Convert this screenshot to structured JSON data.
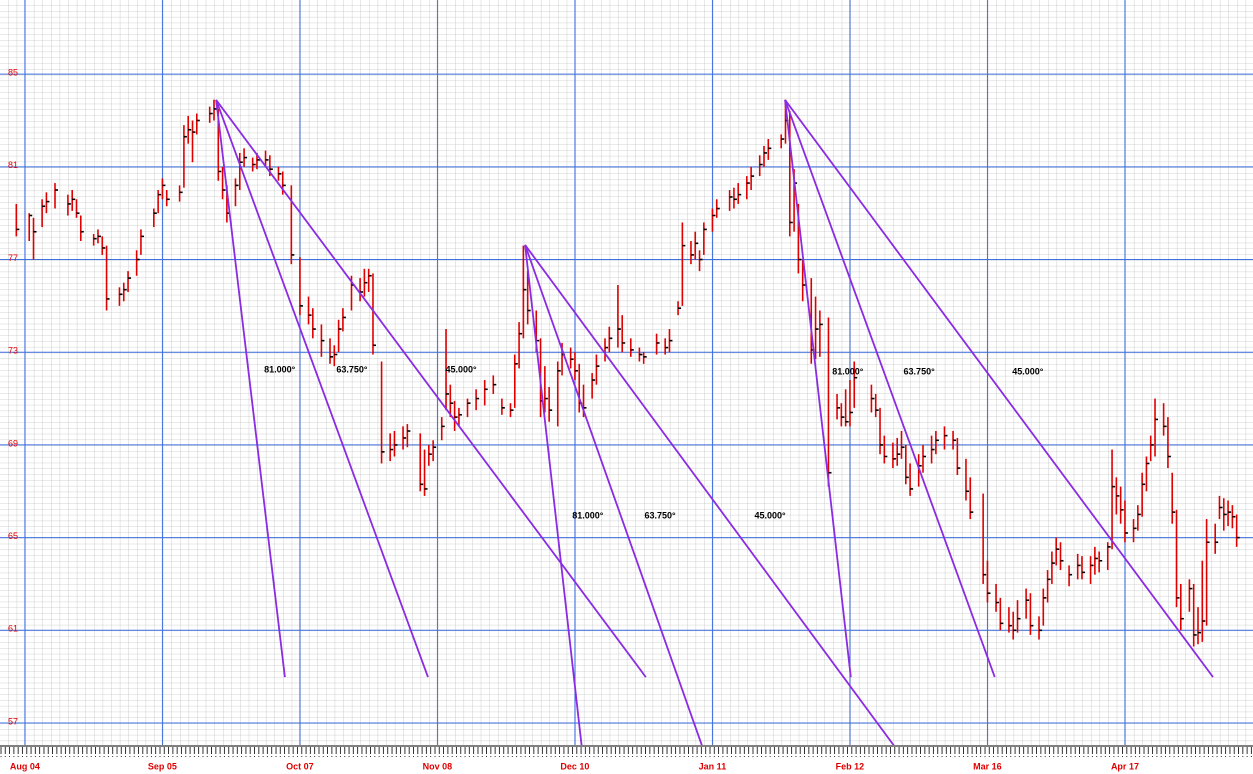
{
  "chart_data": {
    "type": "ohlc",
    "xlim": [
      -5.8,
      285.8
    ],
    "ylim": [
      56.05,
      88.2
    ],
    "yticks": [
      57,
      61,
      65,
      69,
      73,
      77,
      81,
      85
    ],
    "xticks": [
      {
        "value": 0,
        "label": "Aug 04"
      },
      {
        "value": 32,
        "label": "Sep 05"
      },
      {
        "value": 64,
        "label": "Oct 07"
      },
      {
        "value": 96,
        "label": "Nov 08"
      },
      {
        "value": 128,
        "label": "Dec 10"
      },
      {
        "value": 160,
        "label": "Jan 11"
      },
      {
        "value": 192,
        "label": "Feb 12"
      },
      {
        "value": 224,
        "label": "Mar 16"
      },
      {
        "value": 256,
        "label": "Apr 17"
      }
    ],
    "grid": true,
    "color": "#e00000",
    "close_color": "#000000",
    "fan_color": "#8b2be2",
    "x": [
      -2,
      1,
      2,
      4,
      5,
      7,
      10,
      11,
      12,
      13,
      16,
      17,
      18,
      19,
      22,
      23,
      24,
      26,
      27,
      30,
      31,
      32,
      33,
      36,
      37,
      38,
      39,
      40,
      43,
      44,
      45,
      46,
      47,
      49,
      50,
      51,
      53,
      54,
      56,
      57,
      59,
      60,
      62,
      64,
      66,
      67,
      69,
      71,
      72,
      73,
      74,
      76,
      78,
      79,
      80,
      81,
      83,
      85,
      86,
      88,
      89,
      92,
      93,
      94,
      95,
      97,
      98,
      99,
      100,
      101,
      103,
      105,
      107,
      109,
      111,
      113,
      114,
      115,
      116,
      117,
      119,
      120,
      121,
      122,
      124,
      125,
      127,
      128,
      129,
      130,
      132,
      133,
      135,
      136,
      138,
      139,
      141,
      143,
      144,
      147,
      149,
      150,
      152,
      153,
      155,
      156,
      157,
      158,
      160,
      161,
      164,
      165,
      166,
      168,
      169,
      171,
      172,
      173,
      176,
      177,
      178,
      179,
      180,
      181,
      183,
      184,
      185,
      187,
      189,
      190,
      191,
      192,
      193,
      197,
      198,
      199,
      200,
      202,
      203,
      204,
      205,
      206,
      208,
      209,
      211,
      212,
      214,
      216,
      217,
      219,
      220,
      223,
      224,
      226,
      227,
      229,
      230,
      231,
      233,
      234,
      236,
      237,
      238,
      239,
      240,
      241,
      243,
      245,
      246,
      248,
      249,
      250,
      252,
      253,
      254,
      255,
      256,
      258,
      259,
      260,
      261,
      262,
      263,
      265,
      266,
      267,
      268,
      269,
      271,
      272,
      273,
      274,
      275,
      277,
      278,
      279,
      280,
      281,
      282
    ],
    "high": [
      79.4,
      79.0,
      78.8,
      79.6,
      79.9,
      80.3,
      79.8,
      80.0,
      79.6,
      78.9,
      78.1,
      78.3,
      78.0,
      77.6,
      75.8,
      76.0,
      76.5,
      77.4,
      78.3,
      79.2,
      80.0,
      80.5,
      80.0,
      80.2,
      82.8,
      83.2,
      83.0,
      83.3,
      83.6,
      83.9,
      83.5,
      81.0,
      80.2,
      80.5,
      81.6,
      81.8,
      81.4,
      81.6,
      81.7,
      81.5,
      81.0,
      80.8,
      80.2,
      77.1,
      75.4,
      74.9,
      74.2,
      73.6,
      73.3,
      74.4,
      74.9,
      76.3,
      76.2,
      76.6,
      76.6,
      76.4,
      72.6,
      69.5,
      69.6,
      69.8,
      69.9,
      69.5,
      68.8,
      69.0,
      69.2,
      70.2,
      74.0,
      71.6,
      70.9,
      70.6,
      71.0,
      71.4,
      71.8,
      72.0,
      71.0,
      70.8,
      72.9,
      74.3,
      77.6,
      76.5,
      74.8,
      73.6,
      72.4,
      71.5,
      72.6,
      73.4,
      73.2,
      73.0,
      72.5,
      71.6,
      72.1,
      72.9,
      73.6,
      74.1,
      75.9,
      74.6,
      73.6,
      73.2,
      73.0,
      73.8,
      73.6,
      74.0,
      75.2,
      78.6,
      77.8,
      78.2,
      77.4,
      78.6,
      79.2,
      79.6,
      80.0,
      80.1,
      80.3,
      80.6,
      81.0,
      81.5,
      81.9,
      82.2,
      82.4,
      83.9,
      83.4,
      80.9,
      79.4,
      77.0,
      76.2,
      75.4,
      74.8,
      74.5,
      71.2,
      70.8,
      71.4,
      71.8,
      72.6,
      71.6,
      71.2,
      70.6,
      69.4,
      69.1,
      69.3,
      69.6,
      69.0,
      68.2,
      68.6,
      69.0,
      69.4,
      69.6,
      69.8,
      69.6,
      69.3,
      68.4,
      67.6,
      66.9,
      64.0,
      63.0,
      62.4,
      62.0,
      61.8,
      62.3,
      62.8,
      62.6,
      61.6,
      62.8,
      63.6,
      64.4,
      65.0,
      64.8,
      63.8,
      64.3,
      64.2,
      64.2,
      64.6,
      64.4,
      64.8,
      68.8,
      67.6,
      67.2,
      66.6,
      65.8,
      66.4,
      67.8,
      68.5,
      69.4,
      71.0,
      70.8,
      70.2,
      67.8,
      66.2,
      63.0,
      63.2,
      63.0,
      62.0,
      64.0,
      65.8,
      65.6,
      66.8,
      66.7,
      66.6,
      66.4,
      66.0
    ],
    "low": [
      78.0,
      77.8,
      77.0,
      78.4,
      79.0,
      79.2,
      78.9,
      79.1,
      78.8,
      77.8,
      77.6,
      77.7,
      77.2,
      74.8,
      75.0,
      75.2,
      75.6,
      76.3,
      77.2,
      78.4,
      79.0,
      79.6,
      79.3,
      79.5,
      80.1,
      82.0,
      81.2,
      82.4,
      82.9,
      83.0,
      80.4,
      79.6,
      78.6,
      79.3,
      80.0,
      81.0,
      80.8,
      80.9,
      81.0,
      80.6,
      80.4,
      79.8,
      76.8,
      74.6,
      74.2,
      73.6,
      72.8,
      72.5,
      72.4,
      73.0,
      73.9,
      74.8,
      75.2,
      75.4,
      75.6,
      72.9,
      68.2,
      68.3,
      68.5,
      68.8,
      68.9,
      67.0,
      66.8,
      68.1,
      68.3,
      69.2,
      70.5,
      70.2,
      69.6,
      69.8,
      70.2,
      70.5,
      70.7,
      71.2,
      70.3,
      70.2,
      70.6,
      72.3,
      73.6,
      74.2,
      73.0,
      70.2,
      70.4,
      70.0,
      69.8,
      72.0,
      72.3,
      71.8,
      70.4,
      70.2,
      71.0,
      71.6,
      72.6,
      73.0,
      73.2,
      73.0,
      72.8,
      72.6,
      72.5,
      72.9,
      72.9,
      73.0,
      74.6,
      75.0,
      76.8,
      77.0,
      76.5,
      77.2,
      78.2,
      78.8,
      79.1,
      79.2,
      79.4,
      79.6,
      80.0,
      80.6,
      81.0,
      81.3,
      81.8,
      82.0,
      78.0,
      78.2,
      76.4,
      75.2,
      72.5,
      72.7,
      72.8,
      67.2,
      70.1,
      69.8,
      69.8,
      69.8,
      70.6,
      70.4,
      70.2,
      68.6,
      68.2,
      68.0,
      68.1,
      68.4,
      67.3,
      66.8,
      67.2,
      67.8,
      68.2,
      68.6,
      68.8,
      68.8,
      67.7,
      66.6,
      65.8,
      63.0,
      62.2,
      61.8,
      61.0,
      60.9,
      60.6,
      60.9,
      61.5,
      60.8,
      60.6,
      61.2,
      62.2,
      63.0,
      63.8,
      63.6,
      62.9,
      63.2,
      63.2,
      63.0,
      63.4,
      63.5,
      63.6,
      64.5,
      66.0,
      65.6,
      64.8,
      64.8,
      65.3,
      65.9,
      67.0,
      68.3,
      68.5,
      69.4,
      68.0,
      65.6,
      62.0,
      61.0,
      61.8,
      60.3,
      60.4,
      60.5,
      61.2,
      64.3,
      65.8,
      65.3,
      65.5,
      65.4,
      64.6
    ],
    "close": [
      78.3,
      78.9,
      78.2,
      79.3,
      79.5,
      80.0,
      79.4,
      79.6,
      79.0,
      78.2,
      77.9,
      78.0,
      77.5,
      75.3,
      75.5,
      75.7,
      76.2,
      77.0,
      78.0,
      79.0,
      79.8,
      80.2,
      79.6,
      79.9,
      82.3,
      82.6,
      82.5,
      83.0,
      83.3,
      83.5,
      80.8,
      80.0,
      79.0,
      80.2,
      81.2,
      81.4,
      81.1,
      81.3,
      81.3,
      80.9,
      80.7,
      80.2,
      77.2,
      75.0,
      74.6,
      74.0,
      73.5,
      72.8,
      72.9,
      74.0,
      74.5,
      75.9,
      75.6,
      76.0,
      76.3,
      73.3,
      68.7,
      68.8,
      69.0,
      69.3,
      69.6,
      67.3,
      67.1,
      68.6,
      68.9,
      69.8,
      71.2,
      70.8,
      70.2,
      70.3,
      70.8,
      71.0,
      71.4,
      71.6,
      70.6,
      70.5,
      72.5,
      73.8,
      75.7,
      74.8,
      73.5,
      70.9,
      71.0,
      70.5,
      72.2,
      72.9,
      72.7,
      72.2,
      70.8,
      70.6,
      71.8,
      72.4,
      73.2,
      73.6,
      74.0,
      73.4,
      73.1,
      72.9,
      72.8,
      73.4,
      73.2,
      73.5,
      74.9,
      77.6,
      77.2,
      77.7,
      77.0,
      78.3,
      78.9,
      79.2,
      79.7,
      79.6,
      79.8,
      80.3,
      80.6,
      81.1,
      81.6,
      81.8,
      82.2,
      83.0,
      78.6,
      80.3,
      77.0,
      75.9,
      73.1,
      74.0,
      74.2,
      67.8,
      70.6,
      70.2,
      70.0,
      70.4,
      71.9,
      71.0,
      70.5,
      69.0,
      68.5,
      68.4,
      68.6,
      68.9,
      67.6,
      67.1,
      68.1,
      68.5,
      68.8,
      69.2,
      69.4,
      69.2,
      68.0,
      67.0,
      66.1,
      63.4,
      62.6,
      62.2,
      61.3,
      61.2,
      61.0,
      61.5,
      62.3,
      61.2,
      61.0,
      62.4,
      63.2,
      63.9,
      64.5,
      64.0,
      63.4,
      63.8,
      63.5,
      63.8,
      64.1,
      64.0,
      64.6,
      67.2,
      66.8,
      66.2,
      65.2,
      65.4,
      66.0,
      67.3,
      68.2,
      69.0,
      70.1,
      69.8,
      68.5,
      66.1,
      62.4,
      61.5,
      62.8,
      60.8,
      60.9,
      61.4,
      64.8,
      64.8,
      66.3,
      66.0,
      66.1,
      65.9,
      65.0
    ],
    "fans": [
      {
        "origin": [
          44.5,
          83.89
        ],
        "lines": [
          {
            "end": [
              60.5,
              58.98
            ],
            "label": "81.000°",
            "label_x": 59.3,
            "label_y": 72.23
          },
          {
            "end": [
              93.8,
              58.98
            ],
            "label": "63.750°",
            "label_x": 76.1,
            "label_y": 72.23
          },
          {
            "end": [
              144.5,
              58.98
            ],
            "label": "45.000°",
            "label_x": 101.5,
            "label_y": 72.23
          }
        ]
      },
      {
        "origin": [
          116.4,
          77.63
        ],
        "lines": [
          {
            "end": [
              130.3,
              54.8
            ],
            "label": "81.000°",
            "label_x": 131.0,
            "label_y": 65.93
          },
          {
            "end": [
              159.9,
              54.8
            ],
            "label": "63.750°",
            "label_x": 147.8,
            "label_y": 65.93
          },
          {
            "end": [
              207.1,
              54.8
            ],
            "label": "45.000°",
            "label_x": 173.4,
            "label_y": 65.93
          }
        ]
      },
      {
        "origin": [
          176.9,
          83.89
        ],
        "lines": [
          {
            "end": [
              192.2,
              58.98
            ],
            "label": "81.000°",
            "label_x": 191.5,
            "label_y": 72.15
          },
          {
            "end": [
              225.7,
              58.98
            ],
            "label": "63.750°",
            "label_x": 208.1,
            "label_y": 72.15
          },
          {
            "end": [
              276.5,
              58.98
            ],
            "label": "45.000°",
            "label_x": 233.4,
            "label_y": 72.15
          }
        ]
      }
    ]
  }
}
